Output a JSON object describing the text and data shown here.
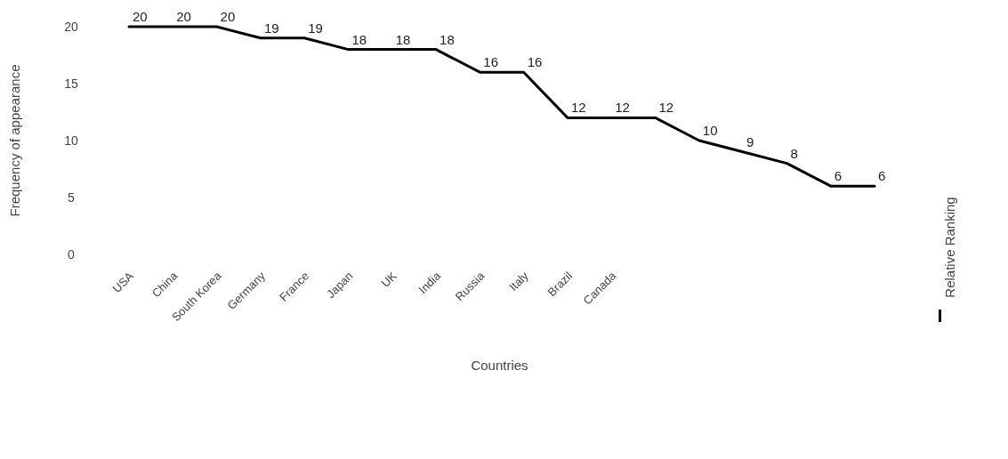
{
  "chart_data": {
    "type": "line",
    "xlabel": "Countries",
    "ylabel": "Frequency of appearance",
    "categories": [
      "USA",
      "China",
      "South Korea",
      "Germany",
      "France",
      "Japan",
      "UK",
      "India",
      "Russia",
      "Italy",
      "Brazil",
      "Canada",
      null,
      null,
      null,
      null,
      null,
      null
    ],
    "series": [
      {
        "name": "Relative Ranking",
        "color": "#000000",
        "values": [
          20,
          20,
          20,
          19,
          19,
          18,
          18,
          18,
          16,
          16,
          12,
          12,
          12,
          10,
          9,
          8,
          6,
          6
        ]
      }
    ],
    "ylim": [
      0,
      20
    ],
    "yticks": [
      0,
      5,
      10,
      15,
      20
    ],
    "data_labels": true,
    "grid": false,
    "legend": "right",
    "marker": "none",
    "line_style": "solid"
  }
}
